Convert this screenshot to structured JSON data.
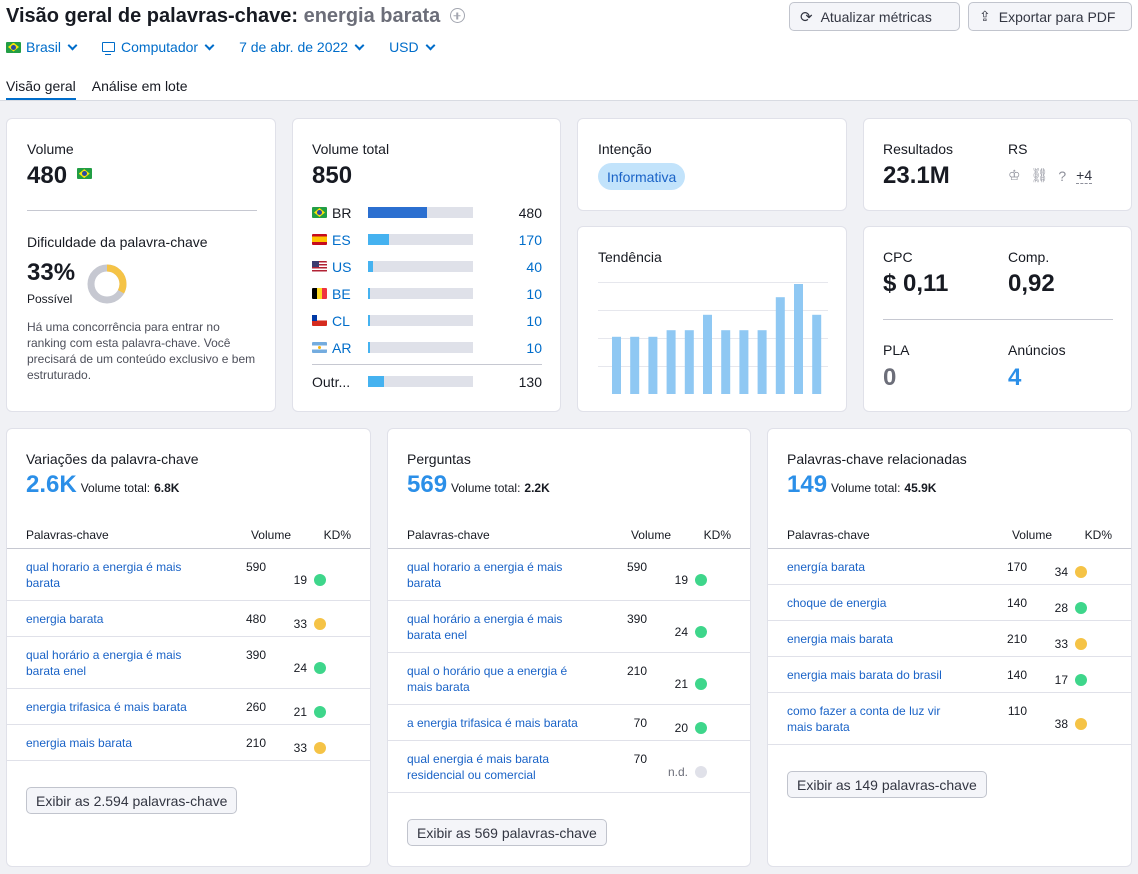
{
  "header": {
    "title": "Visão geral de palavras-chave:",
    "keyword": "energia barata",
    "refresh_label": "Atualizar métricas",
    "export_label": "Exportar para PDF"
  },
  "filters": {
    "country": "Brasil",
    "device": "Computador",
    "date": "7 de abr. de 2022",
    "currency": "USD"
  },
  "tabs": [
    "Visão geral",
    "Análise em lote"
  ],
  "volume": {
    "label": "Volume",
    "value": "480",
    "kd_label": "Dificuldade da palavra-chave",
    "kd_value": "33%",
    "kd_level": "Possível",
    "kd_percent": 33,
    "kd_text": "Há uma concorrência para entrar no ranking com esta palavra-chave. Você precisará de um conteúdo exclusivo e bem estruturado."
  },
  "total_volume": {
    "label": "Volume total",
    "value": "850",
    "countries": [
      {
        "code": "BR",
        "value": "480",
        "fraction": 0.56,
        "flag": "br",
        "color": "#2b6fd0",
        "link": false
      },
      {
        "code": "ES",
        "value": "170",
        "fraction": 0.2,
        "flag": "es",
        "color": "#45b2f0",
        "link": true
      },
      {
        "code": "US",
        "value": "40",
        "fraction": 0.05,
        "flag": "us",
        "color": "#45b2f0",
        "link": true
      },
      {
        "code": "BE",
        "value": "10",
        "fraction": 0.02,
        "flag": "be",
        "color": "#45b2f0",
        "link": true
      },
      {
        "code": "CL",
        "value": "10",
        "fraction": 0.02,
        "flag": "cl",
        "color": "#45b2f0",
        "link": true
      },
      {
        "code": "AR",
        "value": "10",
        "fraction": 0.02,
        "flag": "ar",
        "color": "#45b2f0",
        "link": true
      }
    ],
    "others_label": "Outr...",
    "others_value": "130",
    "others_fraction": 0.15
  },
  "intent": {
    "label": "Intenção",
    "badge": "Informativa"
  },
  "results": {
    "label": "Resultados",
    "value": "23.1M",
    "rs_label": "RS",
    "rs_more": "+4"
  },
  "trend": {
    "label": "Tendência",
    "values": [
      0.52,
      0.52,
      0.52,
      0.58,
      0.58,
      0.72,
      0.58,
      0.58,
      0.58,
      0.88,
      1.0,
      0.72
    ]
  },
  "cpc": {
    "cpc_label": "CPC",
    "cpc_value": "$ 0,11",
    "comp_label": "Comp.",
    "comp_value": "0,92",
    "pla_label": "PLA",
    "pla_value": "0",
    "ads_label": "Anúncios",
    "ads_value": "4"
  },
  "columns": {
    "keyword": "Palavras-chave",
    "volume": "Volume",
    "kd": "KD%"
  },
  "total_volume_label": "Volume total:",
  "variations": {
    "title": "Variações da palavra-chave",
    "count": "2.6K",
    "total": "6.8K",
    "rows": [
      {
        "k": "qual horario a energia é mais barata",
        "v": "590",
        "d": "19",
        "c": "#3ed68b"
      },
      {
        "k": "energia barata",
        "v": "480",
        "d": "33",
        "c": "#f5c346"
      },
      {
        "k": "qual horário a energia é mais barata enel",
        "v": "390",
        "d": "24",
        "c": "#3ed68b"
      },
      {
        "k": "energia trifasica é mais barata",
        "v": "260",
        "d": "21",
        "c": "#3ed68b"
      },
      {
        "k": "energia mais barata",
        "v": "210",
        "d": "33",
        "c": "#f5c346"
      }
    ],
    "button": "Exibir as 2.594 palavras-chave"
  },
  "questions": {
    "title": "Perguntas",
    "count": "569",
    "total": "2.2K",
    "rows": [
      {
        "k": "qual horario a energia é mais barata",
        "v": "590",
        "d": "19",
        "c": "#3ed68b"
      },
      {
        "k": "qual horário a energia é mais barata enel",
        "v": "390",
        "d": "24",
        "c": "#3ed68b"
      },
      {
        "k": "qual o horário que a energia é mais barata",
        "v": "210",
        "d": "21",
        "c": "#3ed68b"
      },
      {
        "k": "a energia trifasica é mais barata",
        "v": "70",
        "d": "20",
        "c": "#3ed68b"
      },
      {
        "k": "qual energia é mais barata residencial ou comercial",
        "v": "70",
        "d": "n.d.",
        "c": "#e0e1e9"
      }
    ],
    "button": "Exibir as 569 palavras-chave"
  },
  "related": {
    "title": "Palavras-chave relacionadas",
    "count": "149",
    "total": "45.9K",
    "rows": [
      {
        "k": "energía barata",
        "v": "170",
        "d": "34",
        "c": "#f5c346"
      },
      {
        "k": "choque de energia",
        "v": "140",
        "d": "28",
        "c": "#3ed68b"
      },
      {
        "k": "energia mais barata",
        "v": "210",
        "d": "33",
        "c": "#f5c346"
      },
      {
        "k": "energia mais barata do brasil",
        "v": "140",
        "d": "17",
        "c": "#3ed68b"
      },
      {
        "k": "como fazer a conta de luz vir mais barata",
        "v": "110",
        "d": "38",
        "c": "#f5c346"
      }
    ],
    "button": "Exibir as 149 palavras-chave"
  }
}
